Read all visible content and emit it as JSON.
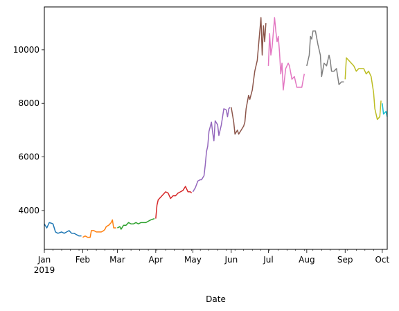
{
  "chart_data": {
    "type": "line",
    "title": "",
    "xlabel": "Date",
    "ylabel": "",
    "xlim": [
      "2019-01-01",
      "2019-10-05"
    ],
    "ylim": [
      2550,
      11600
    ],
    "grid": false,
    "legend": "none",
    "x_ticks": [
      {
        "date": "2019-01-01",
        "label": "Jan",
        "sublabel": "2019"
      },
      {
        "date": "2019-02-01",
        "label": "Feb"
      },
      {
        "date": "2019-03-01",
        "label": "Mar"
      },
      {
        "date": "2019-04-01",
        "label": "Apr"
      },
      {
        "date": "2019-05-01",
        "label": "May"
      },
      {
        "date": "2019-06-01",
        "label": "Jun"
      },
      {
        "date": "2019-07-01",
        "label": "Jul"
      },
      {
        "date": "2019-08-01",
        "label": "Aug"
      },
      {
        "date": "2019-09-01",
        "label": "Sep"
      },
      {
        "date": "2019-10-01",
        "label": "Oct"
      }
    ],
    "y_ticks": [
      {
        "value": 4000,
        "label": "4000"
      },
      {
        "value": 6000,
        "label": "6000"
      },
      {
        "value": 8000,
        "label": "8000"
      },
      {
        "value": 10000,
        "label": "10000"
      }
    ],
    "series": [
      {
        "color": "#1f77b4",
        "points": [
          [
            "2019-01-01",
            3500
          ],
          [
            "2019-01-03",
            3350
          ],
          [
            "2019-01-05",
            3550
          ],
          [
            "2019-01-07",
            3520
          ],
          [
            "2019-01-08",
            3500
          ],
          [
            "2019-01-10",
            3200
          ],
          [
            "2019-01-12",
            3150
          ],
          [
            "2019-01-15",
            3200
          ],
          [
            "2019-01-17",
            3150
          ],
          [
            "2019-01-19",
            3200
          ],
          [
            "2019-01-21",
            3250
          ],
          [
            "2019-01-23",
            3150
          ],
          [
            "2019-01-25",
            3150
          ],
          [
            "2019-01-27",
            3100
          ],
          [
            "2019-01-29",
            3050
          ],
          [
            "2019-01-31",
            3050
          ]
        ]
      },
      {
        "color": "#ff7f0e",
        "points": [
          [
            "2019-02-01",
            3000
          ],
          [
            "2019-02-03",
            3050
          ],
          [
            "2019-02-05",
            3000
          ],
          [
            "2019-02-07",
            3000
          ],
          [
            "2019-02-08",
            3250
          ],
          [
            "2019-02-10",
            3250
          ],
          [
            "2019-02-12",
            3200
          ],
          [
            "2019-02-14",
            3200
          ],
          [
            "2019-02-16",
            3200
          ],
          [
            "2019-02-18",
            3250
          ],
          [
            "2019-02-19",
            3300
          ],
          [
            "2019-02-20",
            3400
          ],
          [
            "2019-02-22",
            3450
          ],
          [
            "2019-02-24",
            3550
          ],
          [
            "2019-02-25",
            3650
          ],
          [
            "2019-02-26",
            3350
          ],
          [
            "2019-02-28",
            3350
          ]
        ]
      },
      {
        "color": "#2ca02c",
        "points": [
          [
            "2019-03-01",
            3350
          ],
          [
            "2019-03-03",
            3400
          ],
          [
            "2019-03-04",
            3300
          ],
          [
            "2019-03-06",
            3450
          ],
          [
            "2019-03-08",
            3450
          ],
          [
            "2019-03-10",
            3550
          ],
          [
            "2019-03-12",
            3500
          ],
          [
            "2019-03-14",
            3500
          ],
          [
            "2019-03-16",
            3550
          ],
          [
            "2019-03-18",
            3500
          ],
          [
            "2019-03-20",
            3550
          ],
          [
            "2019-03-22",
            3550
          ],
          [
            "2019-03-24",
            3550
          ],
          [
            "2019-03-26",
            3600
          ],
          [
            "2019-03-28",
            3650
          ],
          [
            "2019-03-31",
            3700
          ]
        ]
      },
      {
        "color": "#d62728",
        "points": [
          [
            "2019-04-01",
            3700
          ],
          [
            "2019-04-02",
            4200
          ],
          [
            "2019-04-03",
            4400
          ],
          [
            "2019-04-05",
            4500
          ],
          [
            "2019-04-07",
            4600
          ],
          [
            "2019-04-09",
            4700
          ],
          [
            "2019-04-11",
            4650
          ],
          [
            "2019-04-13",
            4450
          ],
          [
            "2019-04-15",
            4550
          ],
          [
            "2019-04-17",
            4550
          ],
          [
            "2019-04-19",
            4650
          ],
          [
            "2019-04-21",
            4700
          ],
          [
            "2019-04-23",
            4750
          ],
          [
            "2019-04-25",
            4900
          ],
          [
            "2019-04-27",
            4700
          ],
          [
            "2019-04-29",
            4700
          ],
          [
            "2019-04-30",
            4650
          ]
        ]
      },
      {
        "color": "#9467bd",
        "points": [
          [
            "2019-05-01",
            4700
          ],
          [
            "2019-05-03",
            4850
          ],
          [
            "2019-05-05",
            5100
          ],
          [
            "2019-05-07",
            5150
          ],
          [
            "2019-05-08",
            5150
          ],
          [
            "2019-05-10",
            5300
          ],
          [
            "2019-05-11",
            5700
          ],
          [
            "2019-05-12",
            6200
          ],
          [
            "2019-05-13",
            6400
          ],
          [
            "2019-05-14",
            6950
          ],
          [
            "2019-05-16",
            7300
          ],
          [
            "2019-05-17",
            6900
          ],
          [
            "2019-05-18",
            6600
          ],
          [
            "2019-05-19",
            7350
          ],
          [
            "2019-05-21",
            7200
          ],
          [
            "2019-05-22",
            6800
          ],
          [
            "2019-05-24",
            7200
          ],
          [
            "2019-05-26",
            7800
          ],
          [
            "2019-05-28",
            7750
          ],
          [
            "2019-05-29",
            7500
          ],
          [
            "2019-05-30",
            7800
          ],
          [
            "2019-05-31",
            7850
          ]
        ]
      },
      {
        "color": "#8c564b",
        "points": [
          [
            "2019-06-01",
            7850
          ],
          [
            "2019-06-03",
            7300
          ],
          [
            "2019-06-04",
            6850
          ],
          [
            "2019-06-06",
            7000
          ],
          [
            "2019-06-07",
            6850
          ],
          [
            "2019-06-09",
            7000
          ],
          [
            "2019-06-11",
            7150
          ],
          [
            "2019-06-12",
            7300
          ],
          [
            "2019-06-13",
            7800
          ],
          [
            "2019-06-15",
            8300
          ],
          [
            "2019-06-16",
            8150
          ],
          [
            "2019-06-18",
            8500
          ],
          [
            "2019-06-20",
            9200
          ],
          [
            "2019-06-22",
            9600
          ],
          [
            "2019-06-25",
            11200
          ],
          [
            "2019-06-26",
            9800
          ],
          [
            "2019-06-27",
            10900
          ],
          [
            "2019-06-28",
            10300
          ],
          [
            "2019-06-29",
            11000
          ]
        ]
      },
      {
        "color": "#e377c2",
        "points": [
          [
            "2019-07-01",
            9400
          ],
          [
            "2019-07-02",
            10600
          ],
          [
            "2019-07-03",
            9800
          ],
          [
            "2019-07-04",
            10100
          ],
          [
            "2019-07-06",
            11200
          ],
          [
            "2019-07-07",
            10700
          ],
          [
            "2019-07-08",
            10300
          ],
          [
            "2019-07-09",
            10500
          ],
          [
            "2019-07-10",
            9900
          ],
          [
            "2019-07-11",
            9100
          ],
          [
            "2019-07-12",
            9500
          ],
          [
            "2019-07-13",
            8500
          ],
          [
            "2019-07-15",
            9300
          ],
          [
            "2019-07-17",
            9500
          ],
          [
            "2019-07-18",
            9400
          ],
          [
            "2019-07-20",
            8900
          ],
          [
            "2019-07-22",
            9000
          ],
          [
            "2019-07-24",
            8600
          ],
          [
            "2019-07-26",
            8600
          ],
          [
            "2019-07-28",
            8600
          ],
          [
            "2019-07-30",
            9100
          ]
        ]
      },
      {
        "color": "#7f7f7f",
        "points": [
          [
            "2019-08-01",
            9400
          ],
          [
            "2019-08-03",
            9800
          ],
          [
            "2019-08-04",
            10500
          ],
          [
            "2019-08-05",
            10400
          ],
          [
            "2019-08-06",
            10700
          ],
          [
            "2019-08-08",
            10700
          ],
          [
            "2019-08-10",
            10200
          ],
          [
            "2019-08-12",
            9800
          ],
          [
            "2019-08-13",
            9000
          ],
          [
            "2019-08-15",
            9500
          ],
          [
            "2019-08-17",
            9400
          ],
          [
            "2019-08-19",
            9800
          ],
          [
            "2019-08-20",
            9600
          ],
          [
            "2019-08-21",
            9200
          ],
          [
            "2019-08-23",
            9200
          ],
          [
            "2019-08-25",
            9300
          ],
          [
            "2019-08-27",
            8700
          ],
          [
            "2019-08-29",
            8800
          ],
          [
            "2019-08-31",
            8800
          ]
        ]
      },
      {
        "color": "#bcbd22",
        "points": [
          [
            "2019-09-01",
            8900
          ],
          [
            "2019-09-02",
            9700
          ],
          [
            "2019-09-04",
            9600
          ],
          [
            "2019-09-06",
            9500
          ],
          [
            "2019-09-08",
            9400
          ],
          [
            "2019-09-10",
            9200
          ],
          [
            "2019-09-12",
            9300
          ],
          [
            "2019-09-14",
            9300
          ],
          [
            "2019-09-16",
            9300
          ],
          [
            "2019-09-18",
            9100
          ],
          [
            "2019-09-20",
            9200
          ],
          [
            "2019-09-22",
            9000
          ],
          [
            "2019-09-24",
            8400
          ],
          [
            "2019-09-25",
            7800
          ],
          [
            "2019-09-27",
            7400
          ],
          [
            "2019-09-29",
            7500
          ],
          [
            "2019-09-30",
            8100
          ]
        ]
      },
      {
        "color": "#17becf",
        "points": [
          [
            "2019-10-01",
            8000
          ],
          [
            "2019-10-02",
            7600
          ],
          [
            "2019-10-04",
            7700
          ],
          [
            "2019-10-05",
            7500
          ]
        ]
      }
    ]
  }
}
